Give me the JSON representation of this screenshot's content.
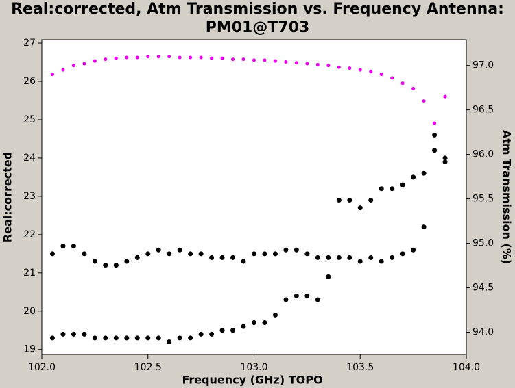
{
  "chart_data": {
    "type": "scatter",
    "title": "Real:corrected, Atm Transmission vs. Frequency Antenna: PM01@T703",
    "x_label": "Frequency (GHz) TOPO",
    "y_label": "Real:corrected",
    "y2_label": "Atm Transmission (%)",
    "x": [
      102.05,
      102.1,
      102.15,
      102.2,
      102.25,
      102.3,
      102.35,
      102.4,
      102.45,
      102.5,
      102.55,
      102.6,
      102.65,
      102.7,
      102.75,
      102.8,
      102.85,
      102.9,
      102.95,
      103.0,
      103.05,
      103.1,
      103.15,
      103.2,
      103.25,
      103.3,
      103.35,
      103.4,
      103.45,
      103.5,
      103.55,
      103.6,
      103.65,
      103.7,
      103.75,
      103.8,
      103.85,
      103.9
    ],
    "series": [
      {
        "color": "#000000",
        "values": [
          21.5,
          21.7,
          21.7,
          21.5,
          21.3,
          21.2,
          21.2,
          21.3,
          21.4,
          21.5,
          21.6,
          21.5,
          21.6,
          21.5,
          21.5,
          21.4,
          21.4,
          21.4,
          21.3,
          21.5,
          21.5,
          21.5,
          21.6,
          21.6,
          21.5,
          21.4,
          21.4,
          22.9,
          22.9,
          22.7,
          22.9,
          23.2,
          23.2,
          23.3,
          23.5,
          23.6,
          24.6,
          24.0
        ]
      },
      {
        "color": "#000000",
        "values": [
          19.3,
          19.4,
          19.4,
          19.4,
          19.3,
          19.3,
          19.3,
          19.3,
          19.3,
          19.3,
          19.3,
          19.2,
          19.3,
          19.3,
          19.4,
          19.4,
          19.5,
          19.5,
          19.6,
          19.7,
          19.7,
          19.9,
          20.3,
          20.4,
          20.4,
          20.3,
          20.9,
          21.4,
          21.4,
          21.3,
          21.4,
          21.3,
          21.4,
          21.5,
          21.6,
          22.2,
          24.2,
          23.9
        ]
      },
      {
        "color": "#ee00ee",
        "axis": "y2",
        "values": [
          96.9,
          96.95,
          97.0,
          97.02,
          97.05,
          97.07,
          97.08,
          97.09,
          97.09,
          97.1,
          97.1,
          97.1,
          97.09,
          97.09,
          97.09,
          97.08,
          97.08,
          97.07,
          97.07,
          97.06,
          97.06,
          97.05,
          97.04,
          97.03,
          97.02,
          97.01,
          97.0,
          96.98,
          96.97,
          96.95,
          96.93,
          96.9,
          96.86,
          96.8,
          96.74,
          96.6,
          96.35,
          96.65
        ]
      }
    ],
    "xlim": [
      102.0,
      104.0
    ],
    "xticks": [
      {
        "value": 102.0,
        "label": "102.0"
      },
      {
        "value": 102.5,
        "label": "102.5"
      },
      {
        "value": 103.0,
        "label": "103.0"
      },
      {
        "value": 103.5,
        "label": "103.5"
      },
      {
        "value": 104.0,
        "label": "104.0"
      }
    ],
    "ylim": [
      18.87,
      27.09
    ],
    "yticks": [
      19,
      20,
      21,
      22,
      23,
      24,
      25,
      26,
      27
    ],
    "y2lim": [
      93.75,
      97.29
    ],
    "y2ticks": [
      {
        "value": 94.0,
        "label": "94.0"
      },
      {
        "value": 94.5,
        "label": "94.5"
      },
      {
        "value": 95.0,
        "label": "95.0"
      },
      {
        "value": 95.5,
        "label": "95.5"
      },
      {
        "value": 96.0,
        "label": "96.0"
      },
      {
        "value": 96.5,
        "label": "96.5"
      },
      {
        "value": 97.0,
        "label": "97.0"
      }
    ]
  }
}
